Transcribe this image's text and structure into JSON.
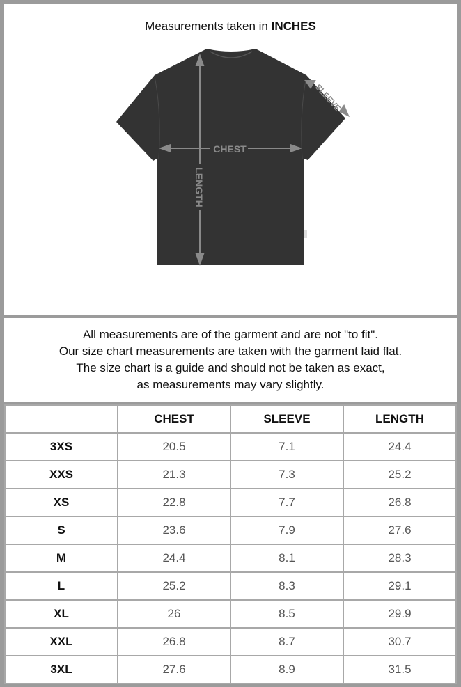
{
  "header": {
    "title_prefix": "Measurements taken in",
    "title_unit": "INCHES"
  },
  "diagram": {
    "labels": {
      "chest": "CHEST",
      "length": "LENGTH",
      "sleeve": "SLEEVE"
    },
    "garment_color": "#333333",
    "arrow_color": "#8a8a8a"
  },
  "notes": [
    "All measurements are of the garment and are not \"to fit\".",
    "Our size chart measurements are taken with the garment laid flat.",
    "The size chart is a guide and should not be taken as exact,",
    "as measurements may vary slightly."
  ],
  "table": {
    "columns": [
      "",
      "CHEST",
      "SLEEVE",
      "LENGTH"
    ],
    "rows": [
      [
        "3XS",
        "20.5",
        "7.1",
        "24.4"
      ],
      [
        "XXS",
        "21.3",
        "7.3",
        "25.2"
      ],
      [
        "XS",
        "22.8",
        "7.7",
        "26.8"
      ],
      [
        "S",
        "23.6",
        "7.9",
        "27.6"
      ],
      [
        "M",
        "24.4",
        "8.1",
        "28.3"
      ],
      [
        "L",
        "25.2",
        "8.3",
        "29.1"
      ],
      [
        "XL",
        "26",
        "8.5",
        "29.9"
      ],
      [
        "XXL",
        "26.8",
        "8.7",
        "30.7"
      ],
      [
        "3XL",
        "27.6",
        "8.9",
        "31.5"
      ]
    ]
  }
}
